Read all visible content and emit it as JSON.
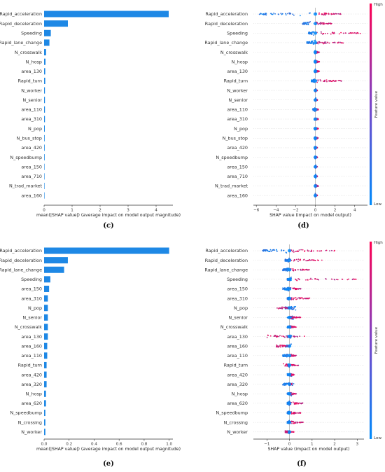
{
  "chart_data": [
    {
      "panel": "(c)",
      "type": "bar",
      "orientation": "horizontal",
      "categories": [
        "Rapid_acceleration",
        "Rapid_deceleration",
        "Speeding",
        "Rapid_lane_change",
        "N_crosswalk",
        "N_hosp",
        "area_130",
        "Rapid_turn",
        "N_worker",
        "N_senior",
        "area_110",
        "area_310",
        "N_pop",
        "N_bus_stop",
        "area_420",
        "N_speedbump",
        "area_150",
        "area_710",
        "N_trad_market",
        "area_160"
      ],
      "values": [
        4.45,
        0.85,
        0.24,
        0.19,
        0.07,
        0.05,
        0.04,
        0.04,
        0.03,
        0.03,
        0.03,
        0.03,
        0.025,
        0.02,
        0.02,
        0.02,
        0.015,
        0.015,
        0.015,
        0.01
      ],
      "xlabel": "mean(|SHAP value|) (average impact on model output magnitude)",
      "xticks": [
        "0",
        "1",
        "2",
        "3",
        "4"
      ],
      "xlim": [
        0,
        4.6
      ],
      "color": "#1e88e5"
    },
    {
      "panel": "(d)",
      "type": "scatter",
      "subtype": "beeswarm",
      "categories": [
        "Rapid_acceleration",
        "Rapid_deceleration",
        "Speeding",
        "Rapid_lane_change",
        "N_crosswalk",
        "N_hosp",
        "area_130",
        "Rapid_turn",
        "N_worker",
        "N_senior",
        "area_110",
        "area_310",
        "N_pop",
        "N_bus_stop",
        "area_420",
        "N_speedbump",
        "area_150",
        "area_710",
        "N_trad_market",
        "area_160"
      ],
      "blue_range": [
        [
          -5.7,
          -0.3
        ],
        [
          -1.3,
          -0.5
        ],
        [
          -0.7,
          -0.1
        ],
        [
          -0.9,
          0.0
        ],
        [
          -0.1,
          0.0
        ],
        [
          -0.1,
          0.0
        ],
        [
          -0.1,
          0.0
        ],
        [
          -0.4,
          0.0
        ],
        [
          -0.05,
          0.05
        ],
        [
          -0.05,
          0.05
        ],
        [
          -0.25,
          0.0
        ],
        [
          -0.1,
          0.0
        ],
        [
          -0.1,
          0.0
        ],
        [
          -0.1,
          0.0
        ],
        [
          -0.1,
          0.0
        ],
        [
          -0.05,
          0.0
        ],
        [
          -0.05,
          0.05
        ],
        [
          -0.05,
          0.05
        ],
        [
          -0.05,
          0.0
        ],
        [
          -0.05,
          0.0
        ]
      ],
      "red_range": [
        [
          0.0,
          2.6
        ],
        [
          0.0,
          1.7
        ],
        [
          0.1,
          4.6
        ],
        [
          0.0,
          2.9
        ],
        [
          0.0,
          0.4
        ],
        [
          0.0,
          0.4
        ],
        [
          0.0,
          0.4
        ],
        [
          0.0,
          2.8
        ],
        [
          0.0,
          0.2
        ],
        [
          0.0,
          0.2
        ],
        [
          0.0,
          0.3
        ],
        [
          0.0,
          0.3
        ],
        [
          0.0,
          0.3
        ],
        [
          0.0,
          0.3
        ],
        [
          0.0,
          0.2
        ],
        [
          0.0,
          0.2
        ],
        [
          0.0,
          0.2
        ],
        [
          0.0,
          0.2
        ],
        [
          0.0,
          0.3
        ],
        [
          0.0,
          0.2
        ]
      ],
      "xlabel": "SHAP value (impact on model output)",
      "xticks": [
        -6,
        -4,
        -2,
        0,
        2,
        4
      ],
      "xlim": [
        -6.3,
        5.3
      ],
      "colorbar": {
        "label": "Feature value",
        "high": "High",
        "low": "Low"
      }
    },
    {
      "panel": "(e)",
      "type": "bar",
      "orientation": "horizontal",
      "categories": [
        "Rapid_acceleration",
        "Rapid_deceleration",
        "Rapid_lane_change",
        "Speeding",
        "area_150",
        "area_310",
        "N_pop",
        "N_senior",
        "N_crosswalk",
        "area_130",
        "area_160",
        "area_110",
        "Rapid_turn",
        "area_420",
        "area_320",
        "N_hosp",
        "area_620",
        "N_speedbump",
        "N_crossing",
        "N_worker"
      ],
      "values": [
        1.0,
        0.19,
        0.16,
        0.05,
        0.04,
        0.03,
        0.03,
        0.03,
        0.03,
        0.03,
        0.025,
        0.025,
        0.02,
        0.02,
        0.02,
        0.015,
        0.015,
        0.01,
        0.01,
        0.01
      ],
      "xlabel": "mean(|SHAP value|) (average impact on model output magnitude)",
      "xticks": [
        "0.0",
        "0.2",
        "0.4",
        "0.6",
        "0.8",
        "1.0"
      ],
      "xlim": [
        0,
        1.03
      ],
      "color": "#1e88e5"
    },
    {
      "panel": "(f)",
      "type": "scatter",
      "subtype": "beeswarm",
      "categories": [
        "Rapid_acceleration",
        "Rapid_deceleration",
        "Rapid_lane_change",
        "Speeding",
        "area_150",
        "area_310",
        "N_pop",
        "N_senior",
        "N_crosswalk",
        "area_130",
        "area_160",
        "area_110",
        "Rapid_turn",
        "area_420",
        "area_320",
        "N_hosp",
        "area_620",
        "N_speedbump",
        "N_crossing",
        "N_worker"
      ],
      "blue_range": [
        [
          -1.2,
          -0.1
        ],
        [
          -0.2,
          0.0
        ],
        [
          -0.3,
          0.0
        ],
        [
          -0.1,
          0.1
        ],
        [
          -0.3,
          0.0
        ],
        [
          -0.1,
          0.0
        ],
        [
          -0.2,
          0.3
        ],
        [
          -0.1,
          0.2
        ],
        [
          -0.1,
          0.1
        ],
        [
          -0.1,
          0.1
        ],
        [
          -0.2,
          0.1
        ],
        [
          -0.3,
          0.0
        ],
        [
          -0.1,
          0.0
        ],
        [
          -0.1,
          0.1
        ],
        [
          -0.3,
          0.2
        ],
        [
          -0.1,
          0.1
        ],
        [
          -0.1,
          0.0
        ],
        [
          -0.1,
          0.0
        ],
        [
          -0.1,
          0.0
        ],
        [
          -0.1,
          0.0
        ]
      ],
      "red_range": [
        [
          0.0,
          2.0
        ],
        [
          0.0,
          1.5
        ],
        [
          0.0,
          0.9
        ],
        [
          0.0,
          3.0
        ],
        [
          0.0,
          0.5
        ],
        [
          0.0,
          0.9
        ],
        [
          -0.6,
          0.0
        ],
        [
          0.0,
          0.5
        ],
        [
          0.0,
          0.3
        ],
        [
          -1.0,
          0.7
        ],
        [
          -0.6,
          0.0
        ],
        [
          0.0,
          0.3
        ],
        [
          -0.3,
          0.4
        ],
        [
          0.0,
          0.2
        ],
        [
          0.0,
          0.1
        ],
        [
          0.0,
          0.3
        ],
        [
          0.0,
          0.6
        ],
        [
          0.0,
          0.5
        ],
        [
          0.0,
          0.6
        ],
        [
          -0.2,
          0.2
        ]
      ],
      "xlabel": "SHAP value (impact on model output)",
      "xticks": [
        -1,
        0,
        1,
        2,
        3
      ],
      "xlim": [
        -1.6,
        3.3
      ],
      "colorbar": {
        "label": "Feature value",
        "high": "High",
        "low": "Low"
      }
    }
  ],
  "colors": {
    "bar": "#1e88e5",
    "high": "#ff0052",
    "low": "#008bfb",
    "zero_line": "#999999"
  }
}
